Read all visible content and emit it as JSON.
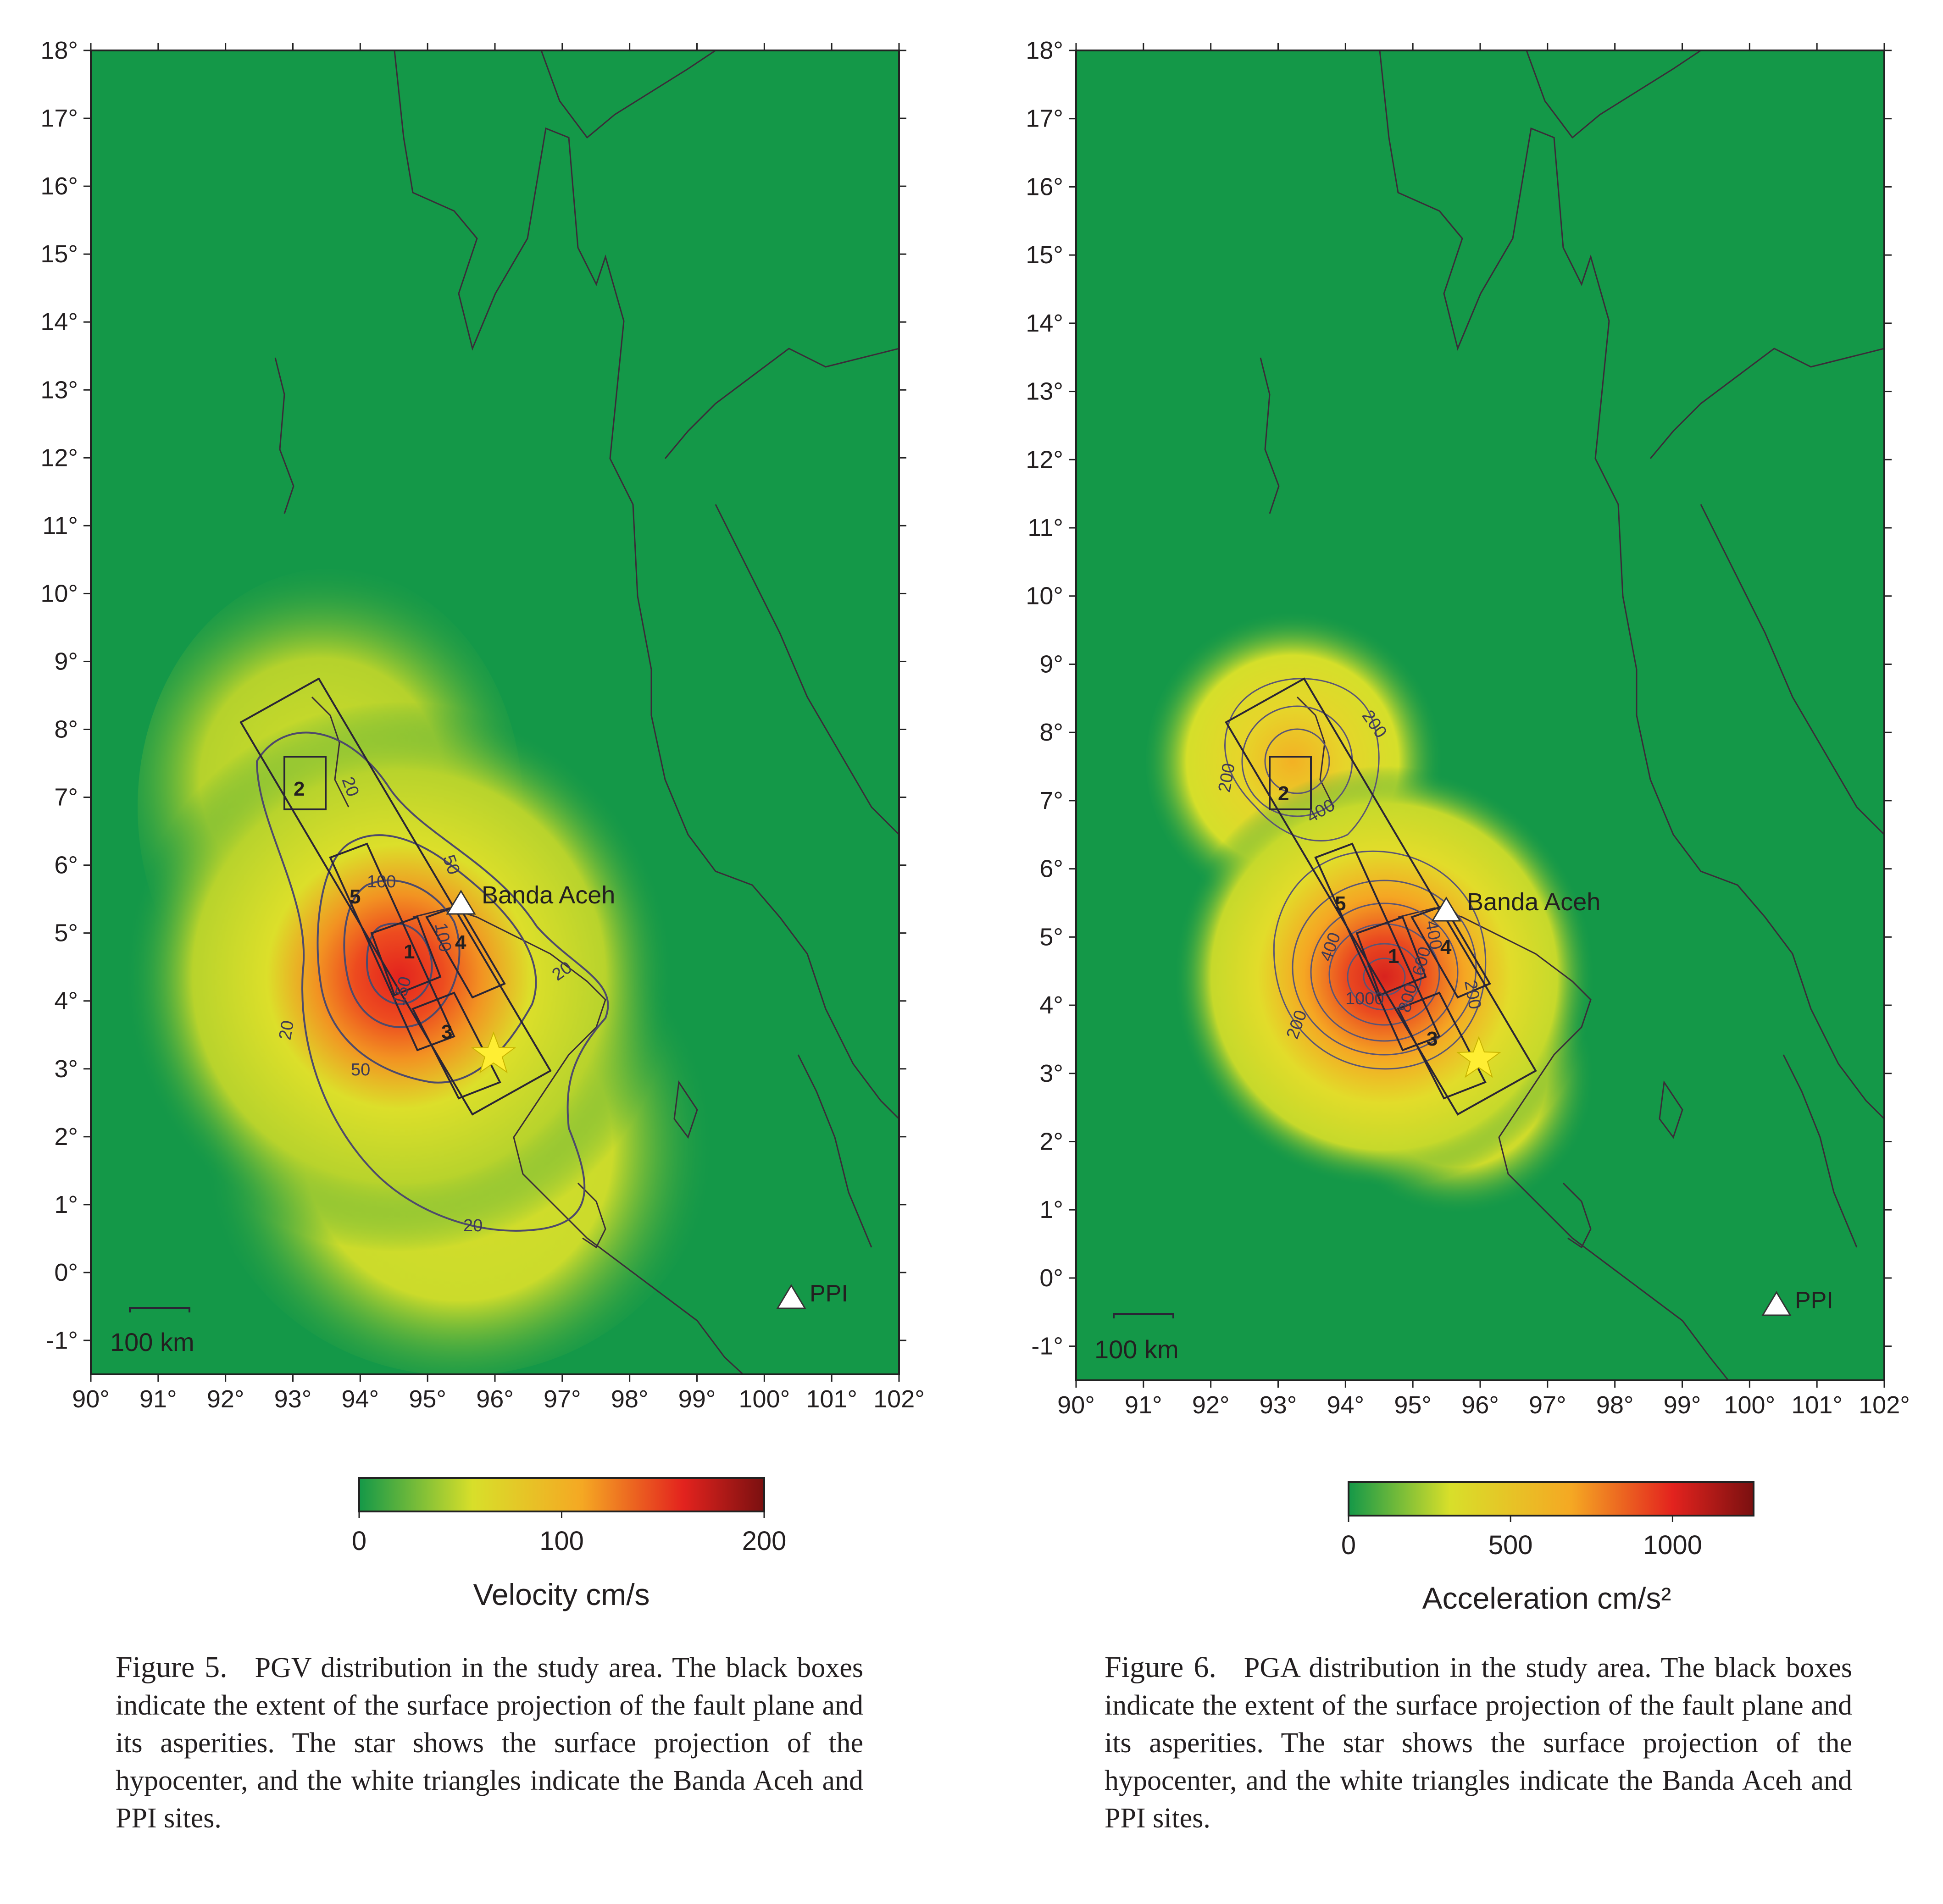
{
  "axes": {
    "lat_ticks": [
      "18°",
      "17°",
      "16°",
      "15°",
      "14°",
      "13°",
      "12°",
      "11°",
      "10°",
      "9°",
      "8°",
      "7°",
      "6°",
      "5°",
      "4°",
      "3°",
      "2°",
      "1°",
      "0°",
      "-1°"
    ],
    "lon_ticks": [
      "90°",
      "91°",
      "92°",
      "93°",
      "94°",
      "95°",
      "96°",
      "97°",
      "98°",
      "99°",
      "100°",
      "101°",
      "102°"
    ],
    "lat_range": [
      -1.5,
      18
    ],
    "lon_range": [
      90,
      102
    ]
  },
  "colors": {
    "background": "#149848",
    "mid": "#d6e02a",
    "high": "#f29322",
    "peak": "#e3231e",
    "darkest": "#7a1010",
    "contour": "#4e4a6b",
    "coast": "#3a2c38",
    "star": "#ffee33"
  },
  "panels": [
    {
      "id": "pgv",
      "sites": [
        {
          "name": "Banda Aceh",
          "lon": 95.5,
          "lat": 5.55
        },
        {
          "name": "PPI",
          "lon": 100.4,
          "lat": -0.4
        }
      ],
      "hypocenter": {
        "lon": 95.95,
        "lat": 3.3
      },
      "segment_labels": [
        "1",
        "2",
        "3",
        "4",
        "5"
      ],
      "contour_labels": [
        "20",
        "20",
        "20",
        "20",
        "50",
        "50",
        "100",
        "100",
        "150"
      ],
      "scale_bar": "100 km",
      "colorbar": {
        "ticks": [
          "0",
          "100",
          "200"
        ],
        "range": [
          0,
          200
        ],
        "label": "Velocity cm/s"
      },
      "caption": {
        "label": "Figure 5.",
        "text": "PGV distribution in the study area. The black boxes indicate the extent of the surface projection of the fault plane and its asperities. The star shows the surface projection of the hypocenter, and the white triangles indicate the Banda Aceh and PPI sites."
      }
    },
    {
      "id": "pga",
      "sites": [
        {
          "name": "Banda Aceh",
          "lon": 95.5,
          "lat": 5.55
        },
        {
          "name": "PPI",
          "lon": 100.4,
          "lat": -0.4
        }
      ],
      "hypocenter": {
        "lon": 95.95,
        "lat": 3.3
      },
      "segment_labels": [
        "1",
        "2",
        "3",
        "4",
        "5"
      ],
      "contour_labels": [
        "200",
        "200",
        "200",
        "200",
        "400",
        "400",
        "400",
        "600",
        "800",
        "1000"
      ],
      "scale_bar": "100 km",
      "colorbar": {
        "ticks": [
          "0",
          "500",
          "1000"
        ],
        "range": [
          0,
          1250
        ],
        "label": "Acceleration cm/s²"
      },
      "caption": {
        "label": "Figure 6.",
        "text": "PGA distribution in the study area. The black boxes indicate the extent of the surface projection of the fault plane and its asperities. The star shows the surface projection of the hypocenter, and the white triangles indicate the Banda Aceh and PPI sites."
      }
    }
  ]
}
